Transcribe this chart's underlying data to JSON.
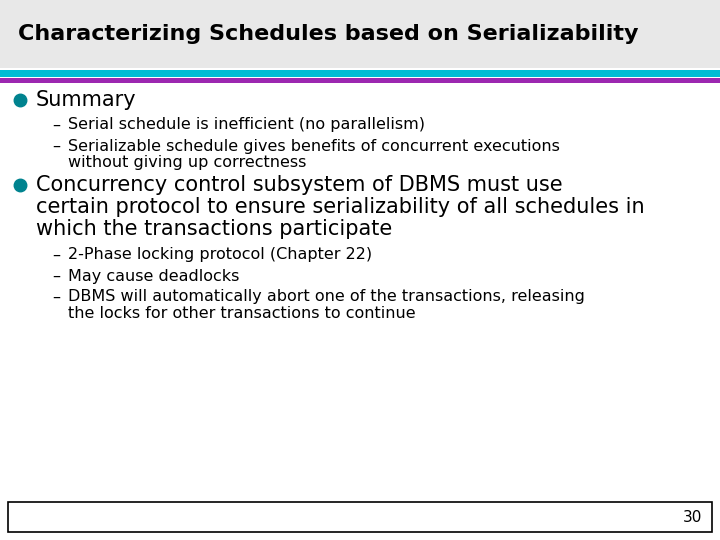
{
  "title": "Characterizing Schedules based on Serializability",
  "title_color": "#000000",
  "title_fontsize": 16,
  "bg_color": "#ffffff",
  "title_bg_color": "#e8e8e8",
  "line1_color": "#00bcd4",
  "line2_color": "#9c27b0",
  "bullet_color": "#00838f",
  "bullet1": "Summary",
  "bullet1_fontsize": 15,
  "sub1_1": "Serial schedule is inefficient (no parallelism)",
  "sub1_2a": "Serializable schedule gives benefits of concurrent executions",
  "sub1_2b": "without giving up correctness",
  "bullet2a": "Concurrency control subsystem of DBMS must use",
  "bullet2b": "certain protocol to ensure serializability of all schedules in",
  "bullet2c": "which the transactions participate",
  "bullet2_fontsize": 15,
  "sub2_1": "2-Phase locking protocol (Chapter 22)",
  "sub2_2": "May cause deadlocks",
  "sub2_3a": "DBMS will automatically abort one of the transactions, releasing",
  "sub2_3b": "the locks for other transactions to continue",
  "sub_fontsize": 11.5,
  "page_number": "30",
  "footer_box_color": "#000000"
}
